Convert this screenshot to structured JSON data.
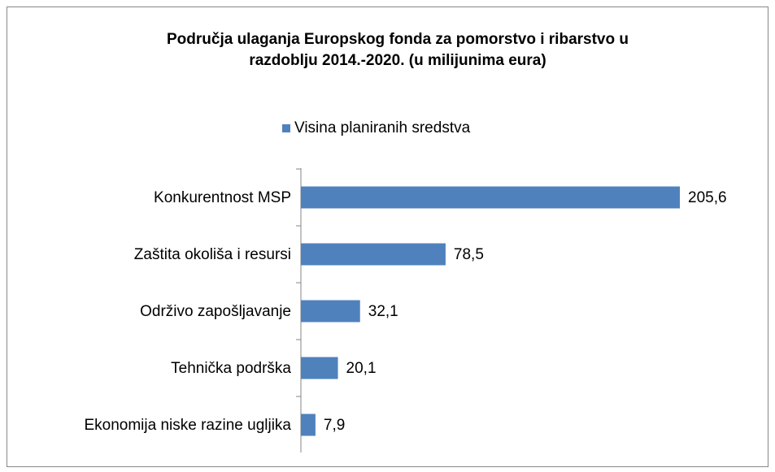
{
  "chart_data": {
    "type": "bar",
    "orientation": "horizontal",
    "title": [
      "Područja ulaganja Europskog  fonda za pomorstvo i ribarstvo u",
      "razdoblju 2014.-2020. (u milijunima eura)"
    ],
    "categories": [
      "Konkurentnost MSP",
      "Zaštita okoliša i resursi",
      "Održivo zapošljavanje",
      "Tehnička podrška",
      "Ekonomija niske razine ugljika"
    ],
    "series": [
      {
        "name": "Visina planiranih sredstva",
        "color": "#4f81bd",
        "values": [
          205.6,
          78.5,
          32.1,
          20.1,
          7.9
        ],
        "value_labels": [
          "205,6",
          "78,5",
          "32,1",
          "20,1",
          "7,9"
        ]
      }
    ],
    "legend": "top"
  }
}
